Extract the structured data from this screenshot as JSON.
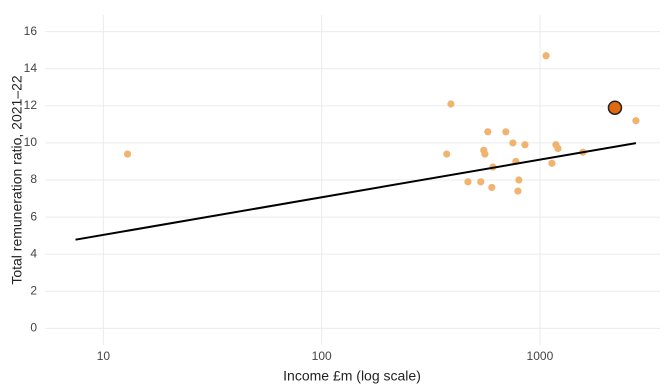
{
  "chart_data": {
    "type": "scatter",
    "x_label": "Income £m (log scale)",
    "y_label": "Total remuneration ratio, 2021–22",
    "log_x": true,
    "grid": true,
    "xlim": [
      5.4,
      3550
    ],
    "ylim": [
      -0.9,
      16.9
    ],
    "xticks": [
      10,
      100,
      1000
    ],
    "yticks": [
      0,
      2,
      4,
      6,
      8,
      10,
      12,
      14,
      16
    ],
    "series": [
      {
        "color": "#f0b46e",
        "x": [
          12.9,
          391,
          374,
          1067,
          577,
          698,
          468,
          536,
          553,
          560,
          602,
          609,
          752,
          776,
          793,
          801,
          854,
          1135,
          1184,
          1210,
          1574,
          2754
        ],
        "y": [
          9.4,
          12.1,
          9.4,
          14.7,
          10.6,
          10.6,
          7.9,
          7.9,
          9.6,
          9.4,
          7.6,
          8.7,
          10.0,
          9.0,
          7.4,
          8.0,
          9.9,
          8.9,
          9.9,
          9.7,
          9.5,
          11.2
        ]
      },
      {
        "color": "#e06a10",
        "stroke": "#222",
        "x": [
          2207
        ],
        "y": [
          11.9
        ]
      }
    ],
    "trend": {
      "color": "#000000",
      "x": [
        7.45,
        2754
      ],
      "y": [
        4.78,
        9.99
      ]
    }
  }
}
